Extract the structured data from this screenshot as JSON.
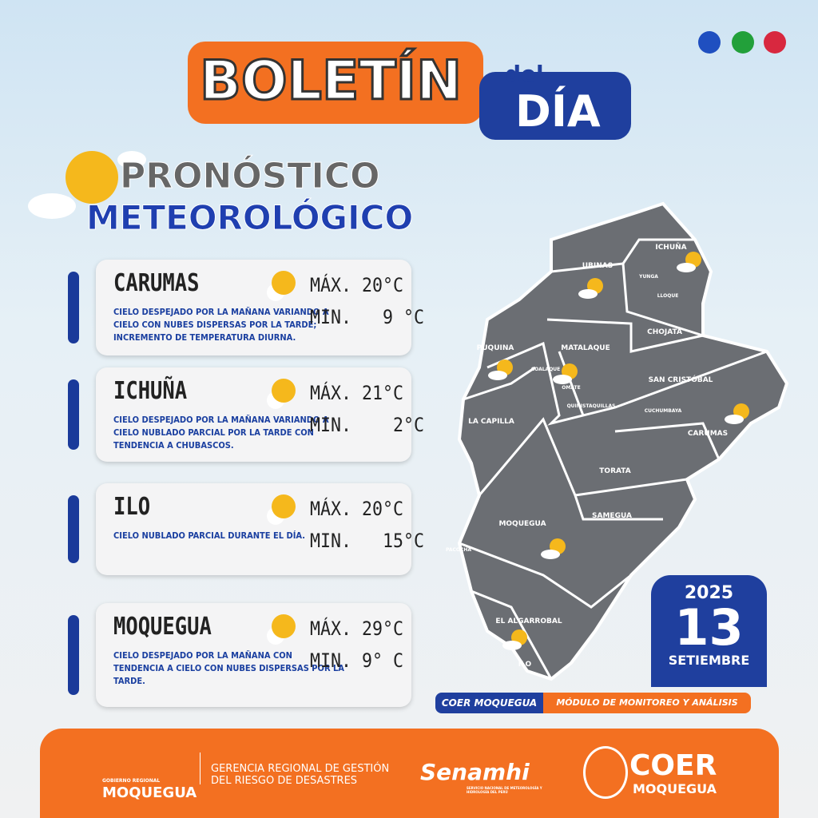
{
  "header": {
    "title": "BOLETÍN",
    "del": "del",
    "dia": "DÍA"
  },
  "section": {
    "line1": "PRONÓSTICO",
    "line2": "METEOROLÓGICO"
  },
  "forecasts": [
    {
      "name": "CARUMAS",
      "description": "CIELO DESPEJADO POR LA MAÑANA VARIANDO A CIELO CON NUBES DISPERSAS POR LA TARDE; INCREMENTO DE TEMPERATURA DIURNA.",
      "max": "MÁX. 20°C",
      "min": "MIN.   9 °C"
    },
    {
      "name": "ICHUÑA",
      "description": "CIELO DESPEJADO POR LA MAÑANA VARIANDO A CIELO NUBLADO PARCIAL POR LA TARDE CON TENDENCIA A CHUBASCOS.",
      "max": "MÁX. 21°C",
      "min": "MIN.    2°C"
    },
    {
      "name": "ILO",
      "description": "CIELO NUBLADO PARCIAL DURANTE EL DÍA.",
      "max": "MÁX. 20°C",
      "min": "MIN.   15°C"
    },
    {
      "name": "MOQUEGUA",
      "description": "CIELO DESPEJADO POR LA MAÑANA CON TENDENCIA A CIELO CON NUBES DISPERSAS POR LA TARDE.",
      "max": "MÁX. 29°C",
      "min": "MIN. 9° C"
    }
  ],
  "map": {
    "labels": [
      "UBINAS",
      "ICHUÑA",
      "YUNGA",
      "LLOQUE",
      "CHOJATA",
      "MATALAQUE",
      "PUQUINA",
      "COALAQUE",
      "OMATE",
      "QUINISTAQUILLAS",
      "SAN CRISTÓBAL",
      "CUCHUMBAYA",
      "CARUMAS",
      "LA CAPILLA",
      "TORATA",
      "SAMEGUA",
      "MOQUEGUA",
      "PACOCHA",
      "EL ALGARROBAL",
      "ILO"
    ]
  },
  "date": {
    "year": "2025",
    "day": "13",
    "month": "SETIEMBRE"
  },
  "credits": {
    "left": "COER MOQUEGUA",
    "right": "MÓDULO DE MONITOREO Y ANÁLISIS"
  },
  "footer": {
    "gov_small": "GOBIERNO REGIONAL",
    "gov": "MOQUEGUA",
    "gerencia1": "GERENCIA REGIONAL DE GESTIÓN",
    "gerencia2": "DEL RIESGO DE DESASTRES",
    "senamhi": "Senamhi",
    "senamhi_sub": "SERVICIO NACIONAL DE METEOROLOGÍA Y HIDROLOGÍA DEL PERÚ",
    "coer": "COER",
    "coer_sub": "MOQUEGUA"
  }
}
